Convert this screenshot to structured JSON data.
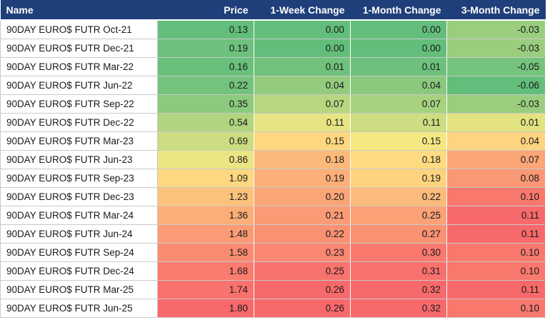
{
  "table": {
    "headers": [
      "Name",
      "Price",
      "1-Week Change",
      "1-Month Change",
      "3-Month Change"
    ],
    "rows": [
      {
        "name": "90DAY EURO$ FUTR Oct-21",
        "price": "0.13",
        "week": "0.00",
        "month": "0.00",
        "three": "-0.03"
      },
      {
        "name": "90DAY EURO$ FUTR Dec-21",
        "price": "0.19",
        "week": "0.00",
        "month": "0.00",
        "three": "-0.03"
      },
      {
        "name": "90DAY EURO$ FUTR Mar-22",
        "price": "0.16",
        "week": "0.01",
        "month": "0.01",
        "three": "-0.05"
      },
      {
        "name": "90DAY EURO$ FUTR Jun-22",
        "price": "0.22",
        "week": "0.04",
        "month": "0.04",
        "three": "-0.06"
      },
      {
        "name": "90DAY EURO$ FUTR Sep-22",
        "price": "0.35",
        "week": "0.07",
        "month": "0.07",
        "three": "-0.03"
      },
      {
        "name": "90DAY EURO$ FUTR Dec-22",
        "price": "0.54",
        "week": "0.11",
        "month": "0.11",
        "three": "0.01"
      },
      {
        "name": "90DAY EURO$ FUTR Mar-23",
        "price": "0.69",
        "week": "0.15",
        "month": "0.15",
        "three": "0.04"
      },
      {
        "name": "90DAY EURO$ FUTR Jun-23",
        "price": "0.86",
        "week": "0.18",
        "month": "0.18",
        "three": "0.07"
      },
      {
        "name": "90DAY EURO$ FUTR Sep-23",
        "price": "1.09",
        "week": "0.19",
        "month": "0.19",
        "three": "0.08"
      },
      {
        "name": "90DAY EURO$ FUTR Dec-23",
        "price": "1.23",
        "week": "0.20",
        "month": "0.22",
        "three": "0.10"
      },
      {
        "name": "90DAY EURO$ FUTR Mar-24",
        "price": "1.36",
        "week": "0.21",
        "month": "0.25",
        "three": "0.11"
      },
      {
        "name": "90DAY EURO$ FUTR Jun-24",
        "price": "1.48",
        "week": "0.22",
        "month": "0.27",
        "three": "0.11"
      },
      {
        "name": "90DAY EURO$ FUTR Sep-24",
        "price": "1.58",
        "week": "0.23",
        "month": "0.30",
        "three": "0.10"
      },
      {
        "name": "90DAY EURO$ FUTR Dec-24",
        "price": "1.68",
        "week": "0.25",
        "month": "0.31",
        "three": "0.10"
      },
      {
        "name": "90DAY EURO$ FUTR Mar-25",
        "price": "1.74",
        "week": "0.26",
        "month": "0.32",
        "three": "0.11"
      },
      {
        "name": "90DAY EURO$ FUTR Jun-25",
        "price": "1.80",
        "week": "0.26",
        "month": "0.32",
        "three": "0.10"
      }
    ]
  },
  "colors": {
    "header_bg": "#1f3f7a",
    "scale_low": "#63be7b",
    "scale_mid": "#ffeb84",
    "scale_high": "#f8696b"
  }
}
